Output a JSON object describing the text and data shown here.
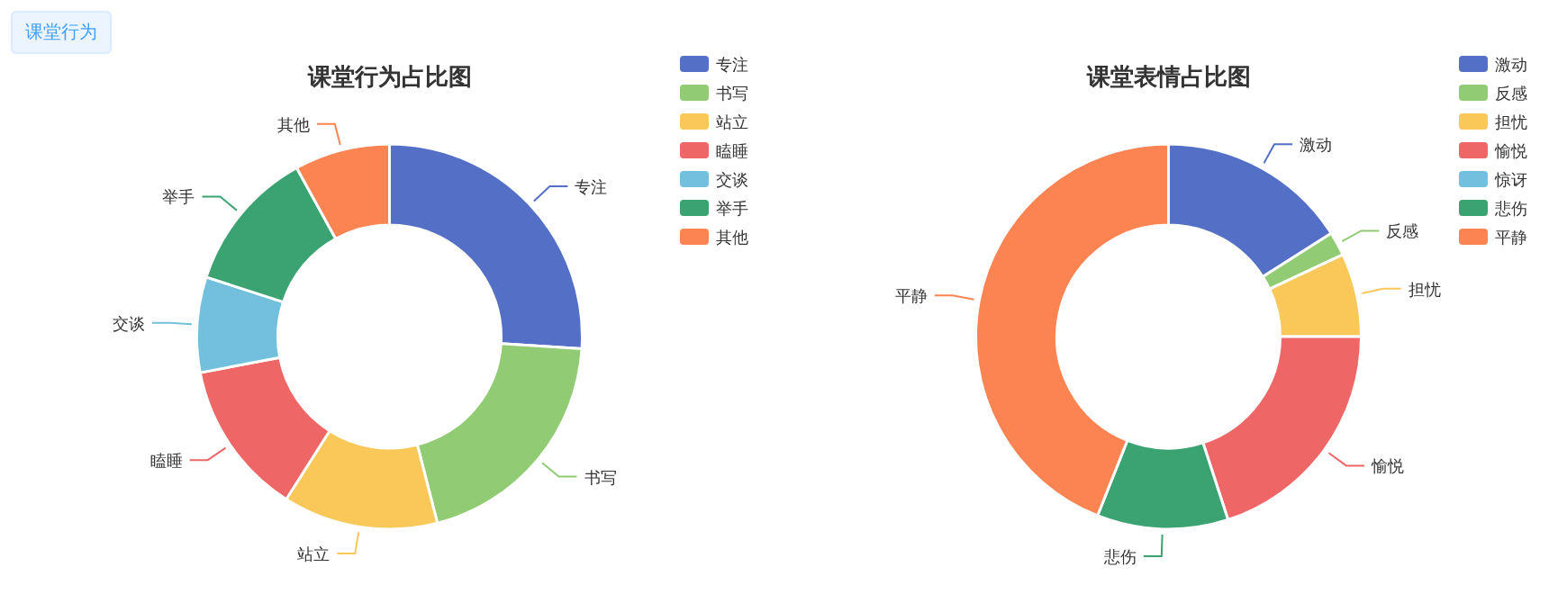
{
  "chart_data": [
    {
      "type": "donut",
      "title": "课堂行为占比图",
      "annotations": [
        "课堂行为"
      ],
      "legend": "top right",
      "categories": [
        "专注",
        "书写",
        "站立",
        "瞌睡",
        "交谈",
        "举手",
        "其他"
      ],
      "values": [
        26,
        20,
        13,
        13,
        8,
        12,
        8
      ],
      "colors": [
        "#5470c6",
        "#91cc75",
        "#fac858",
        "#ee6666",
        "#73c0de",
        "#3ba272",
        "#fc8452"
      ]
    },
    {
      "type": "donut",
      "title": "课堂表情占比图",
      "legend": "top right",
      "categories": [
        "激动",
        "反感",
        "担忧",
        "愉悦",
        "惊讶",
        "悲伤",
        "平静"
      ],
      "values": [
        16,
        2,
        7,
        20,
        0,
        11,
        44
      ],
      "colors": [
        "#5470c6",
        "#91cc75",
        "#fac858",
        "#ee6666",
        "#73c0de",
        "#3ba272",
        "#fc8452"
      ]
    }
  ]
}
